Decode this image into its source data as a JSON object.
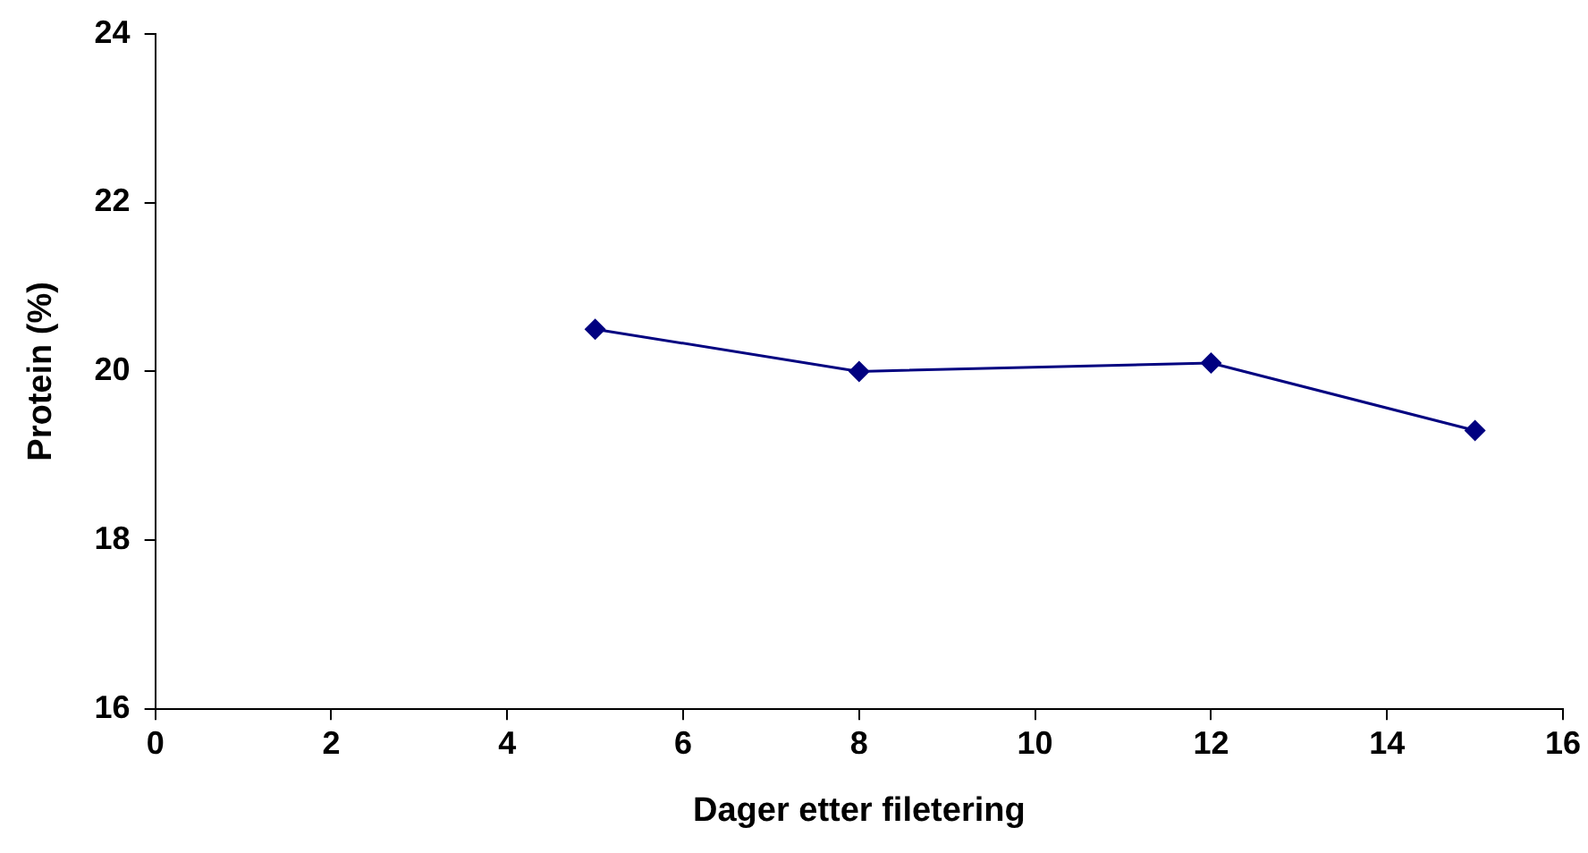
{
  "chart_data": {
    "type": "line",
    "xlabel": "Dager etter filetering",
    "ylabel": "Protein (%)",
    "x": [
      5,
      8,
      12,
      15
    ],
    "series": [
      {
        "color": "#000080",
        "values": [
          20.5,
          20.0,
          20.1,
          19.3
        ]
      }
    ],
    "xlim": [
      0,
      16
    ],
    "xticks": [
      0,
      2,
      4,
      6,
      8,
      10,
      12,
      14,
      16
    ],
    "ylim": [
      16,
      24
    ],
    "yticks": [
      16,
      18,
      20,
      22,
      24
    ],
    "grid": false,
    "legend": false,
    "marker": "diamond",
    "line_style": "solid"
  }
}
